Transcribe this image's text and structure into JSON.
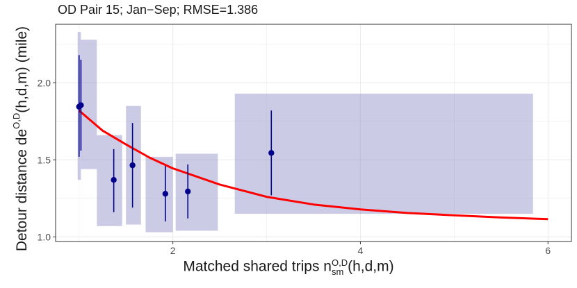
{
  "chart_data": {
    "type": "scatter",
    "title": "OD Pair 15; Jan−Sep; RMSE=1.386",
    "xlabel": {
      "prefix": "Matched shared trips n",
      "sup": "O,D",
      "sub": "sm",
      "suffix": "(h,d,m)"
    },
    "ylabel": {
      "prefix": "Detour distance de",
      "sup": "O,D",
      "suffix": "(h,d,m) (mile)"
    },
    "xlim": [
      0.75,
      6.25
    ],
    "ylim": [
      0.97,
      2.38
    ],
    "x_ticks": [
      2,
      4,
      6
    ],
    "x_tick_labels": [
      "2",
      "4",
      "6"
    ],
    "y_ticks": [
      1.0,
      1.5,
      2.0
    ],
    "y_tick_labels": [
      "1.0",
      "1.5",
      "2.0"
    ],
    "grid": true,
    "colors": {
      "point": "#00008b",
      "rect": "#8c8cc8",
      "curve": "#ff0000",
      "panel_border": "#333333",
      "grid": "#ebebeb"
    },
    "rectangles": [
      {
        "x0": 0.985,
        "x1": 1.02,
        "y0": 1.37,
        "y1": 2.33
      },
      {
        "x0": 1.02,
        "x1": 1.19,
        "y0": 1.44,
        "y1": 2.28
      },
      {
        "x0": 1.19,
        "x1": 1.46,
        "y0": 1.07,
        "y1": 1.66
      },
      {
        "x0": 1.5,
        "x1": 1.66,
        "y0": 1.08,
        "y1": 1.85
      },
      {
        "x0": 1.71,
        "x1": 2.0,
        "y0": 1.03,
        "y1": 1.52
      },
      {
        "x0": 2.03,
        "x1": 2.48,
        "y0": 1.04,
        "y1": 1.54
      },
      {
        "x0": 2.66,
        "x1": 5.84,
        "y0": 1.15,
        "y1": 1.93
      }
    ],
    "points": [
      {
        "x": 1.0,
        "y": 1.845,
        "ymin": 1.52,
        "ymax": 2.18
      },
      {
        "x": 1.02,
        "y": 1.855,
        "ymin": 1.56,
        "ymax": 2.15
      },
      {
        "x": 1.37,
        "y": 1.37,
        "ymin": 1.16,
        "ymax": 1.57
      },
      {
        "x": 1.57,
        "y": 1.465,
        "ymin": 1.19,
        "ymax": 1.74
      },
      {
        "x": 1.92,
        "y": 1.28,
        "ymin": 1.1,
        "ymax": 1.46
      },
      {
        "x": 2.16,
        "y": 1.295,
        "ymin": 1.12,
        "ymax": 1.47
      },
      {
        "x": 3.05,
        "y": 1.545,
        "ymin": 1.27,
        "ymax": 1.82
      }
    ],
    "fit_curve": {
      "x": [
        1.0,
        1.25,
        1.5,
        1.75,
        2.0,
        2.5,
        3.0,
        3.5,
        4.0,
        4.5,
        5.0,
        5.5,
        6.0
      ],
      "y": [
        1.82,
        1.69,
        1.6,
        1.515,
        1.445,
        1.34,
        1.26,
        1.21,
        1.178,
        1.155,
        1.14,
        1.126,
        1.115
      ]
    }
  }
}
